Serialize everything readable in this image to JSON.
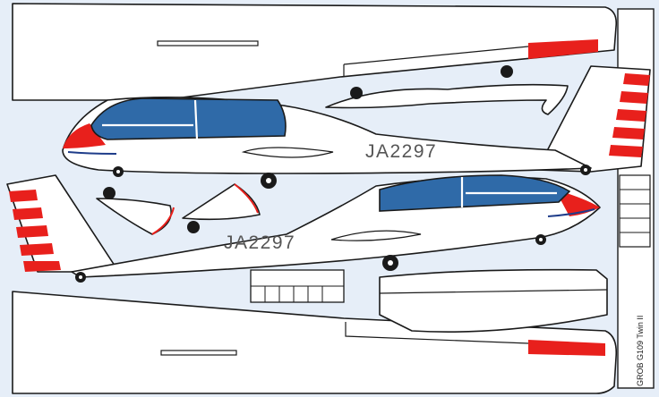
{
  "glider": {
    "registration": "JA2297",
    "model_label": "GROB G109 Twin II"
  },
  "colors": {
    "background": "#e6eef8",
    "canopy": "#2f6aa8",
    "trim": "#e8201c",
    "outline": "#1a1a1a"
  }
}
